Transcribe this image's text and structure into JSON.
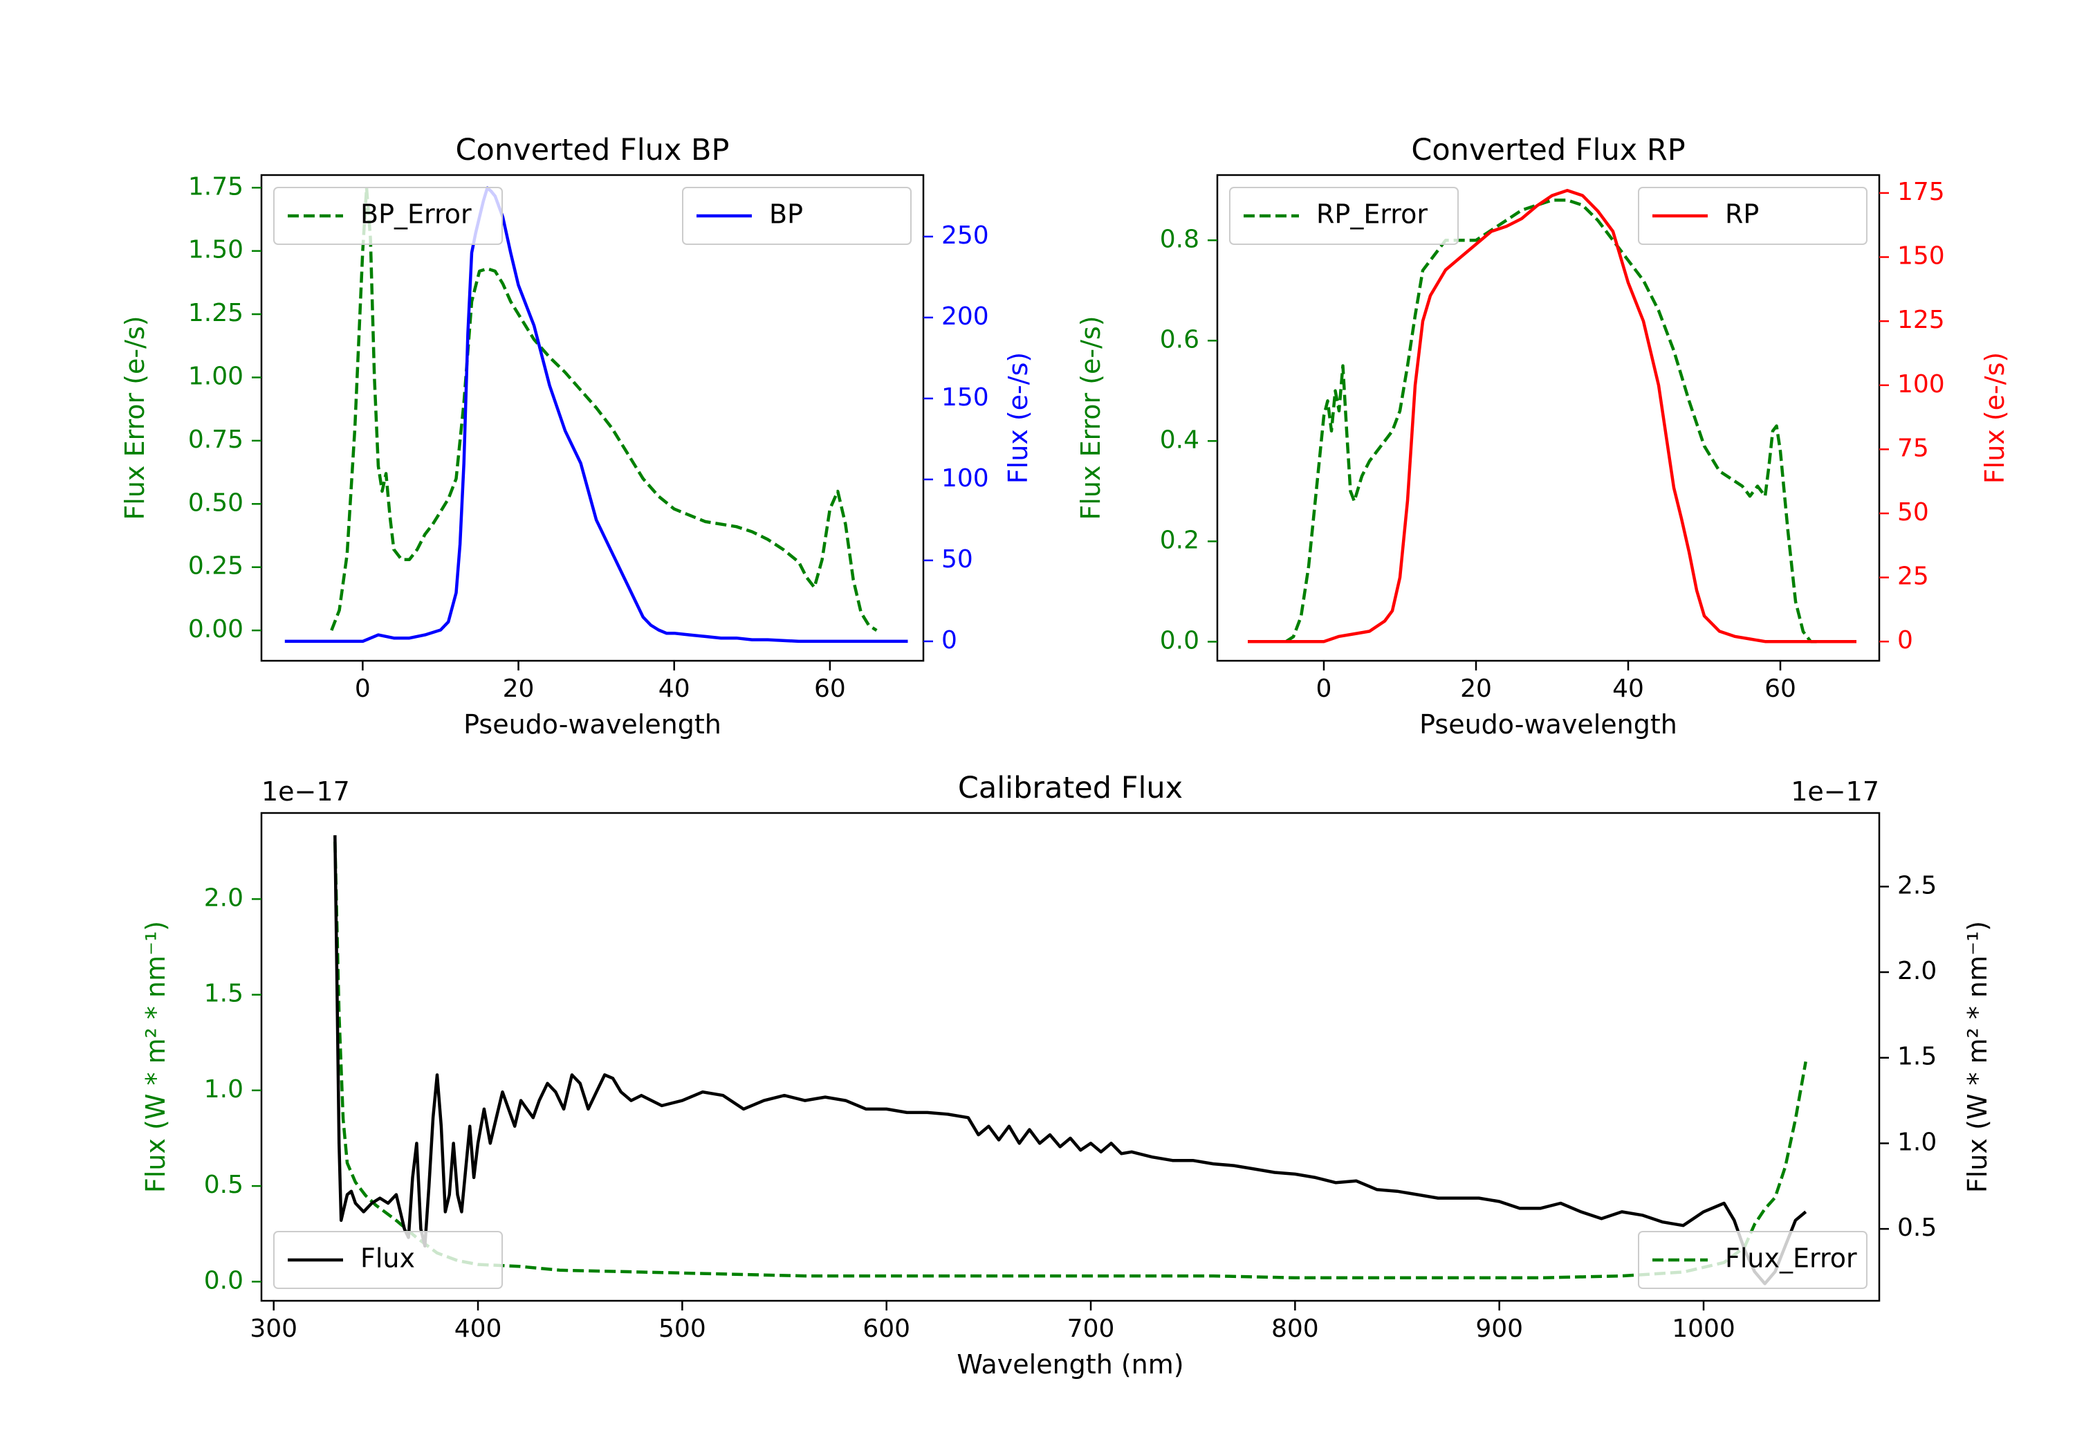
{
  "colors": {
    "bp": "#0000ff",
    "rp": "#ff0000",
    "err": "#008000",
    "cal": "#000000",
    "axis": "#000000"
  },
  "chart_data": [
    {
      "id": "bp",
      "type": "line",
      "title": "Converted Flux BP",
      "xlabel": "Pseudo-wavelength",
      "ylabel_left": "Flux Error (e-/s)",
      "ylabel_right": "Flux (e-/s)",
      "xlim": [
        -13,
        72
      ],
      "ylim_left": [
        -0.12,
        1.8
      ],
      "ylim_right": [
        -12,
        288
      ],
      "xticks": [
        0,
        20,
        40,
        60
      ],
      "yticks_left": [
        "0.00",
        "0.25",
        "0.50",
        "0.75",
        "1.00",
        "1.25",
        "1.50",
        "1.75"
      ],
      "yticks_right": [
        "0",
        "50",
        "100",
        "150",
        "200",
        "250"
      ],
      "legend_left": "BP_Error",
      "legend_right": "BP",
      "series": [
        {
          "name": "BP_Error",
          "axis": "left",
          "style": "dashed",
          "color": "err",
          "x": [
            -4,
            -3,
            -2,
            -1,
            0,
            0.5,
            1,
            1.5,
            2,
            2.5,
            3,
            3.5,
            4,
            5,
            6,
            7,
            8,
            9,
            10,
            11,
            12,
            13,
            14,
            15,
            16,
            17,
            18,
            19,
            20,
            22,
            24,
            26,
            28,
            30,
            32,
            34,
            36,
            38,
            40,
            44,
            48,
            50,
            52,
            54,
            56,
            57,
            58,
            59,
            60,
            61,
            62,
            63,
            64,
            65,
            66
          ],
          "y": [
            0.0,
            0.08,
            0.3,
            0.8,
            1.5,
            1.75,
            1.55,
            1.0,
            0.65,
            0.55,
            0.62,
            0.45,
            0.32,
            0.28,
            0.28,
            0.32,
            0.38,
            0.42,
            0.47,
            0.52,
            0.6,
            0.9,
            1.3,
            1.42,
            1.43,
            1.42,
            1.37,
            1.3,
            1.25,
            1.15,
            1.08,
            1.02,
            0.95,
            0.88,
            0.8,
            0.7,
            0.6,
            0.53,
            0.48,
            0.43,
            0.41,
            0.39,
            0.36,
            0.32,
            0.27,
            0.21,
            0.17,
            0.28,
            0.48,
            0.55,
            0.42,
            0.2,
            0.07,
            0.02,
            0.0
          ]
        },
        {
          "name": "BP",
          "axis": "right",
          "style": "solid",
          "color": "bp",
          "x": [
            -10,
            -8,
            -6,
            -4,
            -2,
            0,
            2,
            4,
            6,
            8,
            10,
            11,
            12,
            12.5,
            13,
            13.5,
            14,
            14.5,
            15,
            15.5,
            16,
            16.5,
            17,
            18,
            19,
            20,
            22,
            24,
            26,
            28,
            30,
            32,
            34,
            36,
            37,
            38,
            39,
            40,
            42,
            44,
            46,
            48,
            50,
            52,
            56,
            60,
            64,
            68,
            70
          ],
          "y": [
            0,
            0,
            0,
            0,
            0,
            0,
            4,
            2,
            2,
            4,
            7,
            12,
            30,
            60,
            110,
            190,
            240,
            252,
            262,
            272,
            280,
            278,
            275,
            262,
            240,
            220,
            195,
            158,
            130,
            110,
            75,
            55,
            35,
            15,
            10,
            7,
            5,
            5,
            4,
            3,
            2,
            2,
            1,
            1,
            0,
            0,
            0,
            0,
            0
          ]
        }
      ]
    },
    {
      "id": "rp",
      "type": "line",
      "title": "Converted Flux RP",
      "xlabel": "Pseudo-wavelength",
      "ylabel_left": "Flux Error (e-/s)",
      "ylabel_right": "Flux (e-/s)",
      "xlim": [
        -14,
        73
      ],
      "ylim_left": [
        -0.038,
        0.93
      ],
      "ylim_right": [
        -7.5,
        182
      ],
      "xticks": [
        0,
        20,
        40,
        60
      ],
      "yticks_left": [
        "0.0",
        "0.2",
        "0.4",
        "0.6",
        "0.8"
      ],
      "yticks_right": [
        "0",
        "25",
        "50",
        "75",
        "100",
        "125",
        "150",
        "175"
      ],
      "legend_left": "RP_Error",
      "legend_right": "RP",
      "series": [
        {
          "name": "RP_Error",
          "axis": "left",
          "style": "dashed",
          "color": "err",
          "x": [
            -5,
            -4,
            -3,
            -2,
            -1,
            0,
            0.5,
            1,
            1.5,
            2,
            2.5,
            3,
            3.5,
            4,
            5,
            6,
            7,
            8,
            9,
            10,
            11,
            12,
            13,
            14,
            16,
            18,
            20,
            22,
            24,
            26,
            28,
            30,
            32,
            34,
            36,
            38,
            40,
            42,
            44,
            46,
            48,
            50,
            52,
            54,
            55,
            56,
            57,
            58,
            58.5,
            59,
            59.5,
            60,
            61,
            62,
            63,
            64,
            65
          ],
          "y": [
            0.0,
            0.01,
            0.05,
            0.15,
            0.3,
            0.45,
            0.48,
            0.42,
            0.5,
            0.46,
            0.55,
            0.42,
            0.3,
            0.28,
            0.33,
            0.36,
            0.38,
            0.4,
            0.42,
            0.46,
            0.55,
            0.65,
            0.74,
            0.76,
            0.8,
            0.8,
            0.8,
            0.82,
            0.84,
            0.86,
            0.87,
            0.88,
            0.88,
            0.87,
            0.84,
            0.8,
            0.76,
            0.72,
            0.66,
            0.58,
            0.48,
            0.39,
            0.34,
            0.32,
            0.31,
            0.29,
            0.31,
            0.29,
            0.35,
            0.42,
            0.43,
            0.38,
            0.22,
            0.08,
            0.02,
            0.0,
            0.0
          ]
        },
        {
          "name": "RP",
          "axis": "right",
          "style": "solid",
          "color": "rp",
          "x": [
            -10,
            -6,
            -2,
            0,
            2,
            4,
            6,
            8,
            9,
            10,
            11,
            12,
            13,
            14,
            15,
            16,
            18,
            20,
            22,
            24,
            26,
            28,
            30,
            32,
            34,
            36,
            38,
            40,
            42,
            44,
            45,
            46,
            47,
            48,
            49,
            50,
            52,
            54,
            56,
            58,
            60,
            64,
            70
          ],
          "y": [
            0,
            0,
            0,
            0,
            2,
            3,
            4,
            8,
            12,
            25,
            55,
            100,
            125,
            135,
            140,
            145,
            150,
            155,
            160,
            162,
            165,
            170,
            174,
            176,
            174,
            168,
            160,
            140,
            125,
            100,
            80,
            60,
            48,
            35,
            20,
            10,
            4,
            2,
            1,
            0,
            0,
            0,
            0
          ]
        }
      ]
    },
    {
      "id": "cal",
      "type": "line",
      "title": "Calibrated Flux",
      "xlabel": "Wavelength (nm)",
      "ylabel_left": "Flux (W * m² * nm⁻¹)",
      "ylabel_right": "Flux (W * m² * nm⁻¹)",
      "offset_left": "1e−17",
      "offset_right": "1e−17",
      "xlim": [
        294,
        1086
      ],
      "ylim_left": [
        -0.1,
        2.45
      ],
      "ylim_right": [
        0.08,
        2.93
      ],
      "xticks": [
        300,
        400,
        500,
        600,
        700,
        800,
        900,
        1000
      ],
      "yticks_left": [
        "0.0",
        "0.5",
        "1.0",
        "1.5",
        "2.0"
      ],
      "yticks_right": [
        "0.5",
        "1.0",
        "1.5",
        "2.0",
        "2.5"
      ],
      "legend_left": "Flux",
      "legend_right": "Flux_Error",
      "series": [
        {
          "name": "Flux_Error",
          "axis": "left",
          "style": "dashed",
          "color": "err",
          "x": [
            330,
            332,
            334,
            336,
            340,
            345,
            350,
            360,
            370,
            380,
            390,
            400,
            420,
            440,
            480,
            520,
            560,
            600,
            640,
            680,
            720,
            760,
            800,
            840,
            880,
            920,
            960,
            990,
            1010,
            1020,
            1025,
            1030,
            1035,
            1040,
            1045,
            1050
          ],
          "y": [
            2.3,
            1.4,
            0.85,
            0.62,
            0.52,
            0.45,
            0.4,
            0.32,
            0.23,
            0.15,
            0.11,
            0.09,
            0.08,
            0.06,
            0.05,
            0.04,
            0.03,
            0.03,
            0.03,
            0.03,
            0.03,
            0.03,
            0.02,
            0.02,
            0.02,
            0.02,
            0.03,
            0.05,
            0.1,
            0.18,
            0.3,
            0.38,
            0.44,
            0.6,
            0.85,
            1.15
          ]
        },
        {
          "name": "Flux",
          "axis": "right",
          "style": "solid",
          "color": "cal",
          "x": [
            330,
            331,
            332,
            333,
            334,
            336,
            338,
            340,
            344,
            348,
            352,
            356,
            360,
            364,
            366,
            368,
            370,
            372,
            374,
            376,
            378,
            380,
            382,
            384,
            386,
            388,
            390,
            392,
            394,
            396,
            398,
            400,
            403,
            406,
            409,
            412,
            415,
            418,
            421,
            424,
            427,
            430,
            434,
            438,
            442,
            446,
            450,
            454,
            458,
            462,
            466,
            470,
            475,
            480,
            490,
            500,
            510,
            520,
            530,
            540,
            550,
            560,
            570,
            580,
            590,
            600,
            610,
            620,
            630,
            640,
            645,
            650,
            655,
            660,
            665,
            670,
            675,
            680,
            685,
            690,
            695,
            700,
            705,
            710,
            715,
            720,
            730,
            740,
            750,
            760,
            770,
            780,
            790,
            800,
            810,
            820,
            830,
            840,
            850,
            860,
            870,
            880,
            890,
            900,
            910,
            920,
            930,
            940,
            950,
            960,
            970,
            980,
            990,
            1000,
            1010,
            1015,
            1020,
            1025,
            1030,
            1035,
            1040,
            1045,
            1050
          ],
          "y": [
            2.8,
            1.9,
            1.0,
            0.55,
            0.6,
            0.7,
            0.72,
            0.65,
            0.6,
            0.65,
            0.68,
            0.65,
            0.7,
            0.5,
            0.45,
            0.8,
            1.0,
            0.5,
            0.4,
            0.75,
            1.15,
            1.4,
            1.1,
            0.6,
            0.7,
            1.0,
            0.7,
            0.6,
            0.85,
            1.1,
            0.8,
            1.0,
            1.2,
            1.0,
            1.15,
            1.3,
            1.2,
            1.1,
            1.25,
            1.2,
            1.15,
            1.25,
            1.35,
            1.3,
            1.2,
            1.4,
            1.35,
            1.2,
            1.3,
            1.4,
            1.38,
            1.3,
            1.25,
            1.28,
            1.22,
            1.25,
            1.3,
            1.28,
            1.2,
            1.25,
            1.28,
            1.25,
            1.27,
            1.25,
            1.2,
            1.2,
            1.18,
            1.18,
            1.17,
            1.15,
            1.05,
            1.1,
            1.02,
            1.1,
            1.0,
            1.08,
            1.0,
            1.05,
            0.98,
            1.03,
            0.96,
            1.0,
            0.95,
            1.0,
            0.94,
            0.95,
            0.92,
            0.9,
            0.9,
            0.88,
            0.87,
            0.85,
            0.83,
            0.82,
            0.8,
            0.77,
            0.78,
            0.73,
            0.72,
            0.7,
            0.68,
            0.68,
            0.68,
            0.66,
            0.62,
            0.62,
            0.65,
            0.6,
            0.56,
            0.6,
            0.58,
            0.54,
            0.52,
            0.6,
            0.65,
            0.55,
            0.38,
            0.25,
            0.18,
            0.25,
            0.4,
            0.55,
            0.6
          ]
        }
      ]
    }
  ]
}
